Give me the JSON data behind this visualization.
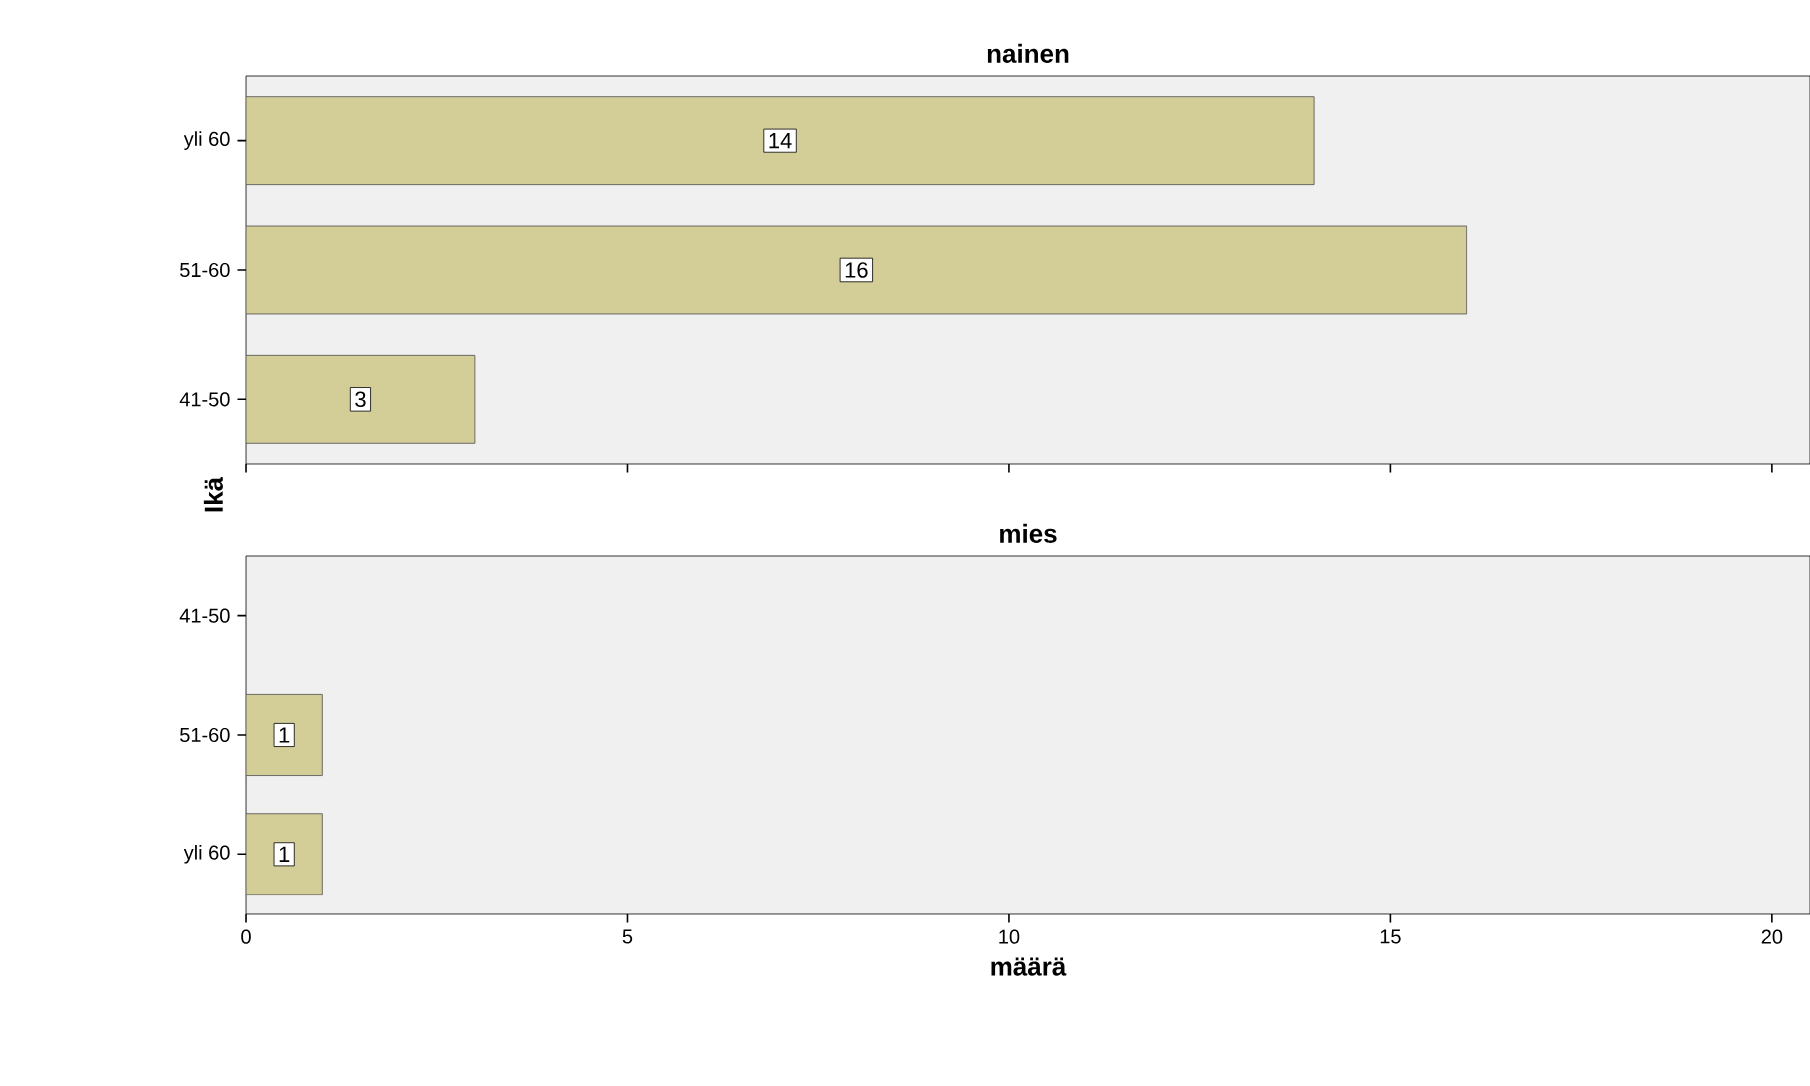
{
  "chart_data": [
    {
      "type": "bar",
      "orientation": "horizontal",
      "title": "nainen",
      "ylabel": "Ikä",
      "categories": [
        "yli 60",
        "51-60",
        "41-50"
      ],
      "values": [
        14,
        16,
        3
      ],
      "color": "#d3cd98",
      "data_labels": true,
      "xlim": [
        0,
        20.5
      ],
      "xticks": [
        0,
        5,
        10,
        15,
        20
      ],
      "tick_labels": "y"
    },
    {
      "type": "bar",
      "orientation": "horizontal",
      "title": "mies",
      "xlabel": "määrä",
      "categories": [
        "41-50",
        "51-60",
        "yli 60"
      ],
      "values": [
        null,
        1,
        1
      ],
      "color": "#d3cd98",
      "data_labels": true,
      "xlim": [
        0,
        20.5
      ],
      "xticks": [
        0,
        5,
        10,
        15,
        20
      ]
    }
  ]
}
